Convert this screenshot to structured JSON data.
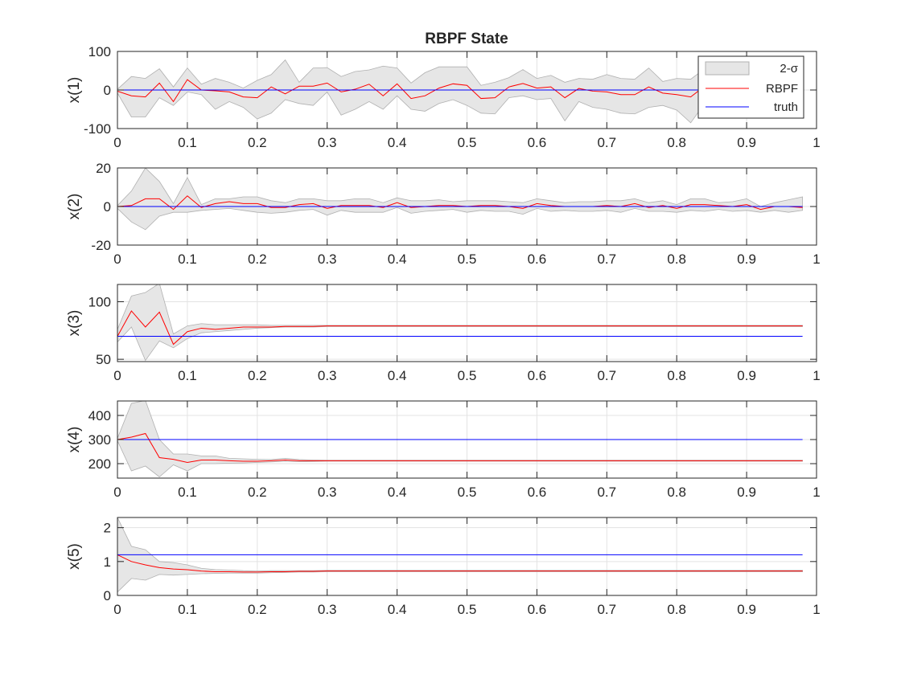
{
  "chart_data": {
    "type": "line",
    "title": "RBPF State",
    "legend": {
      "placement": "top-right of first subplot",
      "entries": [
        "2-σ",
        "RBPF",
        "truth"
      ]
    },
    "colors": {
      "band_fill": "#e6e6e6",
      "band_edge": "#b0b0b0",
      "estimate": "#ff0000",
      "truth": "#0000ff",
      "grid": "#e3e3e3",
      "axes": "#262626"
    },
    "x": [
      0,
      0.02,
      0.04,
      0.06,
      0.08,
      0.1,
      0.12,
      0.14,
      0.16,
      0.18,
      0.2,
      0.22,
      0.24,
      0.26,
      0.28,
      0.3,
      0.32,
      0.34,
      0.36,
      0.38,
      0.4,
      0.42,
      0.44,
      0.46,
      0.48,
      0.5,
      0.52,
      0.54,
      0.56,
      0.58,
      0.6,
      0.62,
      0.64,
      0.66,
      0.68,
      0.7,
      0.72,
      0.74,
      0.76,
      0.78,
      0.8,
      0.82,
      0.84,
      0.86,
      0.88,
      0.9,
      0.92,
      0.94,
      0.96,
      0.98
    ],
    "xlim": [
      0,
      1
    ],
    "xticks": [
      0,
      0.1,
      0.2,
      0.3,
      0.4,
      0.5,
      0.6,
      0.7,
      0.8,
      0.9,
      1
    ],
    "xtick_labels": [
      "0",
      "0.1",
      "0.2",
      "0.3",
      "0.4",
      "0.5",
      "0.6",
      "0.7",
      "0.8",
      "0.9",
      "1"
    ],
    "grid": true,
    "subplots": [
      {
        "ylabel": "x(1)",
        "ylim": [
          -100,
          100
        ],
        "yticks": [
          -100,
          0,
          100
        ],
        "ytick_labels": [
          "-100",
          "0",
          "100"
        ],
        "truth": [
          0,
          0,
          0,
          0,
          0,
          0,
          0,
          0,
          0,
          0,
          0,
          0,
          0,
          0,
          0,
          0,
          0,
          0,
          0,
          0,
          0,
          0,
          0,
          0,
          0,
          0,
          0,
          0,
          0,
          0,
          0,
          0,
          0,
          0,
          0,
          0,
          0,
          0,
          0,
          0,
          0,
          0,
          0,
          0,
          0,
          0,
          0,
          0,
          0,
          0
        ],
        "estimate": [
          -3,
          -15,
          -18,
          18,
          -30,
          27,
          0,
          -2,
          -5,
          -18,
          -20,
          8,
          -10,
          10,
          10,
          18,
          -5,
          2,
          15,
          -15,
          16,
          -22,
          -15,
          5,
          16,
          12,
          -22,
          -20,
          8,
          17,
          5,
          8,
          -20,
          4,
          -3,
          -5,
          -12,
          -12,
          8,
          -8,
          -12,
          -18,
          10,
          5,
          0,
          -5,
          2,
          0,
          3,
          0
        ],
        "upper": [
          2,
          35,
          30,
          55,
          8,
          57,
          15,
          30,
          20,
          5,
          25,
          40,
          78,
          20,
          57,
          58,
          35,
          48,
          52,
          62,
          57,
          18,
          45,
          60,
          60,
          60,
          12,
          20,
          32,
          53,
          30,
          38,
          20,
          30,
          28,
          40,
          30,
          28,
          57,
          22,
          30,
          28,
          55,
          45,
          40,
          35,
          50,
          40,
          45,
          40
        ],
        "lower": [
          -8,
          -70,
          -70,
          -20,
          -40,
          -5,
          -12,
          -50,
          -30,
          -45,
          -75,
          -60,
          -25,
          -35,
          -40,
          -5,
          -65,
          -50,
          -30,
          -50,
          -15,
          -50,
          -55,
          -35,
          -25,
          -40,
          -60,
          -62,
          -20,
          -15,
          -25,
          -22,
          -80,
          -30,
          -45,
          -50,
          -60,
          -62,
          -45,
          -40,
          -52,
          -85,
          -35,
          -30,
          -40,
          -45,
          -35,
          -45,
          -40,
          -40
        ]
      },
      {
        "ylabel": "x(2)",
        "ylim": [
          -20,
          20
        ],
        "yticks": [
          -20,
          0,
          20
        ],
        "ytick_labels": [
          "-20",
          "0",
          "20"
        ],
        "truth": [
          0,
          0,
          0,
          0,
          0,
          0,
          0,
          0,
          0,
          0,
          0,
          0,
          0,
          0,
          0,
          0,
          0,
          0,
          0,
          0,
          0,
          0,
          0,
          0,
          0,
          0,
          0,
          0,
          0,
          0,
          0,
          0,
          0,
          0,
          0,
          0,
          0,
          0,
          0,
          0,
          0,
          0,
          0,
          0,
          0,
          0,
          0,
          0,
          0,
          0
        ],
        "estimate": [
          0,
          0.5,
          4,
          4,
          -1.5,
          5.5,
          -0.5,
          1.5,
          2.5,
          1.5,
          1.5,
          -0.5,
          -0.5,
          1,
          1.5,
          -1,
          0.5,
          0.5,
          0.5,
          -0.5,
          2,
          -0.5,
          0,
          0.5,
          0.5,
          0,
          0.5,
          0.5,
          0,
          -1,
          1.5,
          0.5,
          0,
          0,
          0,
          0.5,
          0,
          1.5,
          -0.5,
          0.5,
          -1,
          1,
          1,
          0.5,
          0,
          1,
          -1.5,
          0,
          0,
          -0.5
        ],
        "upper": [
          0.5,
          8,
          20,
          13,
          1.5,
          15,
          1,
          4,
          4,
          5,
          5,
          3,
          2,
          4,
          4,
          3,
          3,
          4,
          4,
          2,
          4.5,
          3,
          3,
          3.5,
          2.5,
          3,
          3,
          3,
          2.5,
          2,
          4,
          3,
          2,
          2.5,
          2.5,
          3,
          3,
          4,
          2,
          3,
          1,
          4,
          4,
          2,
          2.5,
          4,
          0,
          2,
          3.5,
          5
        ],
        "lower": [
          -1,
          -8,
          -12,
          -5,
          -3,
          -3,
          -2,
          -1.5,
          -1,
          -2,
          -3,
          -3.5,
          -3,
          -2,
          -1.5,
          -4.5,
          -2,
          -3,
          -3,
          -3,
          -0.5,
          -3.5,
          -2.5,
          -2,
          -1.5,
          -3,
          -2,
          -2.5,
          -2.5,
          -4,
          -1,
          -2.5,
          -2,
          -2.5,
          -2.5,
          -2,
          -3,
          -1,
          -2.5,
          -2.5,
          -3,
          -2,
          -2.5,
          -1.5,
          -2.5,
          -2,
          -3,
          -2,
          -3,
          -2
        ]
      },
      {
        "ylabel": "x(3)",
        "ylim": [
          48,
          115
        ],
        "yticks": [
          50,
          100
        ],
        "ytick_labels": [
          "50",
          "100"
        ],
        "truth": [
          70,
          70,
          70,
          70,
          70,
          70,
          70,
          70,
          70,
          70,
          70,
          70,
          70,
          70,
          70,
          70,
          70,
          70,
          70,
          70,
          70,
          70,
          70,
          70,
          70,
          70,
          70,
          70,
          70,
          70,
          70,
          70,
          70,
          70,
          70,
          70,
          70,
          70,
          70,
          70,
          70,
          70,
          70,
          70,
          70,
          70,
          70,
          70,
          70,
          70
        ],
        "estimate": [
          70,
          92,
          78,
          91,
          63,
          74,
          77,
          76,
          77,
          78,
          78,
          78,
          78.5,
          78.5,
          78.5,
          79,
          79,
          79,
          79,
          79,
          79,
          79,
          79,
          79,
          79,
          79,
          79,
          79,
          79,
          79,
          79,
          79,
          79,
          79,
          79,
          79,
          79,
          79,
          79,
          79,
          79,
          79,
          79,
          79,
          79,
          79,
          79,
          79,
          79,
          79
        ],
        "upper": [
          76,
          105,
          108,
          116,
          72,
          79,
          81,
          80,
          80,
          80,
          80,
          79.5,
          79.5,
          79.5,
          79.5,
          79.5,
          79.5,
          79.5,
          79.5,
          79.5,
          79.5,
          79.5,
          79.5,
          79.5,
          79.5,
          79.5,
          79.5,
          79.5,
          79.5,
          79.5,
          79.5,
          79.5,
          79.5,
          79.5,
          79.5,
          79.5,
          79.5,
          79.5,
          79.5,
          79.5,
          79.5,
          79.5,
          79.5,
          79.5,
          79.5,
          79.5,
          79.5,
          79.5,
          79.5,
          79.5
        ],
        "lower": [
          65,
          78,
          49,
          66,
          60,
          68,
          73,
          74,
          75,
          76,
          77,
          77.5,
          78,
          78,
          78,
          78.5,
          78.5,
          78.5,
          78.5,
          78.5,
          78.5,
          78.5,
          78.5,
          78.5,
          78.5,
          78.5,
          78.5,
          78.5,
          78.5,
          78.5,
          78.5,
          78.5,
          78.5,
          78.5,
          78.5,
          78.5,
          78.5,
          78.5,
          78.5,
          78.5,
          78.5,
          78.5,
          78.5,
          78.5,
          78.5,
          78.5,
          78.5,
          78.5,
          78.5,
          78.5
        ]
      },
      {
        "ylabel": "x(4)",
        "ylim": [
          140,
          460
        ],
        "yticks": [
          200,
          300,
          400
        ],
        "ytick_labels": [
          "200",
          "300",
          "400"
        ],
        "truth": [
          300,
          300,
          300,
          300,
          300,
          300,
          300,
          300,
          300,
          300,
          300,
          300,
          300,
          300,
          300,
          300,
          300,
          300,
          300,
          300,
          300,
          300,
          300,
          300,
          300,
          300,
          300,
          300,
          300,
          300,
          300,
          300,
          300,
          300,
          300,
          300,
          300,
          300,
          300,
          300,
          300,
          300,
          300,
          300,
          300,
          300,
          300,
          300,
          300,
          300
        ],
        "estimate": [
          300,
          310,
          325,
          225,
          218,
          205,
          215,
          215,
          212,
          210,
          210,
          212,
          215,
          212,
          212,
          212,
          212,
          212,
          212,
          212,
          212,
          212,
          212,
          212,
          212,
          212,
          212,
          212,
          212,
          212,
          212,
          212,
          212,
          212,
          212,
          212,
          212,
          212,
          212,
          212,
          212,
          212,
          212,
          212,
          212,
          212,
          212,
          212,
          212,
          212
        ],
        "upper": [
          305,
          450,
          462,
          300,
          240,
          240,
          232,
          232,
          222,
          220,
          218,
          217,
          222,
          217,
          215,
          214,
          214,
          214,
          214,
          214,
          214,
          214,
          214,
          214,
          214,
          214,
          214,
          214,
          214,
          214,
          214,
          214,
          214,
          214,
          214,
          214,
          214,
          214,
          214,
          214,
          214,
          214,
          214,
          214,
          214,
          214,
          214,
          214,
          214,
          214
        ],
        "lower": [
          295,
          170,
          190,
          145,
          195,
          170,
          200,
          200,
          202,
          203,
          205,
          207,
          210,
          208,
          209,
          210,
          210,
          210,
          210,
          210,
          210,
          210,
          210,
          210,
          210,
          210,
          210,
          210,
          210,
          210,
          210,
          210,
          210,
          210,
          210,
          210,
          210,
          210,
          210,
          210,
          210,
          210,
          210,
          210,
          210,
          210,
          210,
          210,
          210,
          210
        ]
      },
      {
        "ylabel": "x(5)",
        "ylim": [
          0,
          2.3
        ],
        "yticks": [
          0,
          1,
          2
        ],
        "ytick_labels": [
          "0",
          "1",
          "2"
        ],
        "truth": [
          1.2,
          1.2,
          1.2,
          1.2,
          1.2,
          1.2,
          1.2,
          1.2,
          1.2,
          1.2,
          1.2,
          1.2,
          1.2,
          1.2,
          1.2,
          1.2,
          1.2,
          1.2,
          1.2,
          1.2,
          1.2,
          1.2,
          1.2,
          1.2,
          1.2,
          1.2,
          1.2,
          1.2,
          1.2,
          1.2,
          1.2,
          1.2,
          1.2,
          1.2,
          1.2,
          1.2,
          1.2,
          1.2,
          1.2,
          1.2,
          1.2,
          1.2,
          1.2,
          1.2,
          1.2,
          1.2,
          1.2,
          1.2,
          1.2,
          1.2
        ],
        "estimate": [
          1.2,
          1.0,
          0.9,
          0.82,
          0.78,
          0.76,
          0.72,
          0.7,
          0.7,
          0.69,
          0.69,
          0.7,
          0.7,
          0.71,
          0.71,
          0.72,
          0.72,
          0.72,
          0.72,
          0.72,
          0.72,
          0.72,
          0.72,
          0.72,
          0.72,
          0.72,
          0.72,
          0.72,
          0.72,
          0.72,
          0.72,
          0.72,
          0.72,
          0.72,
          0.72,
          0.72,
          0.72,
          0.72,
          0.72,
          0.72,
          0.72,
          0.72,
          0.72,
          0.72,
          0.72,
          0.72,
          0.72,
          0.72,
          0.72,
          0.72
        ],
        "upper": [
          2.3,
          1.45,
          1.35,
          1.0,
          0.97,
          0.9,
          0.8,
          0.76,
          0.75,
          0.73,
          0.72,
          0.73,
          0.73,
          0.73,
          0.73,
          0.74,
          0.74,
          0.74,
          0.74,
          0.74,
          0.74,
          0.74,
          0.74,
          0.74,
          0.74,
          0.74,
          0.74,
          0.74,
          0.74,
          0.74,
          0.74,
          0.74,
          0.74,
          0.74,
          0.74,
          0.74,
          0.74,
          0.74,
          0.74,
          0.74,
          0.74,
          0.74,
          0.74,
          0.74,
          0.74,
          0.74,
          0.74,
          0.74,
          0.74,
          0.74
        ],
        "lower": [
          0.1,
          0.5,
          0.45,
          0.62,
          0.6,
          0.62,
          0.64,
          0.65,
          0.66,
          0.66,
          0.66,
          0.67,
          0.68,
          0.69,
          0.69,
          0.7,
          0.7,
          0.7,
          0.7,
          0.7,
          0.7,
          0.7,
          0.7,
          0.7,
          0.7,
          0.7,
          0.7,
          0.7,
          0.7,
          0.7,
          0.7,
          0.7,
          0.7,
          0.7,
          0.7,
          0.7,
          0.7,
          0.7,
          0.7,
          0.7,
          0.7,
          0.7,
          0.7,
          0.7,
          0.7,
          0.7,
          0.7,
          0.7,
          0.7,
          0.7
        ]
      }
    ]
  }
}
